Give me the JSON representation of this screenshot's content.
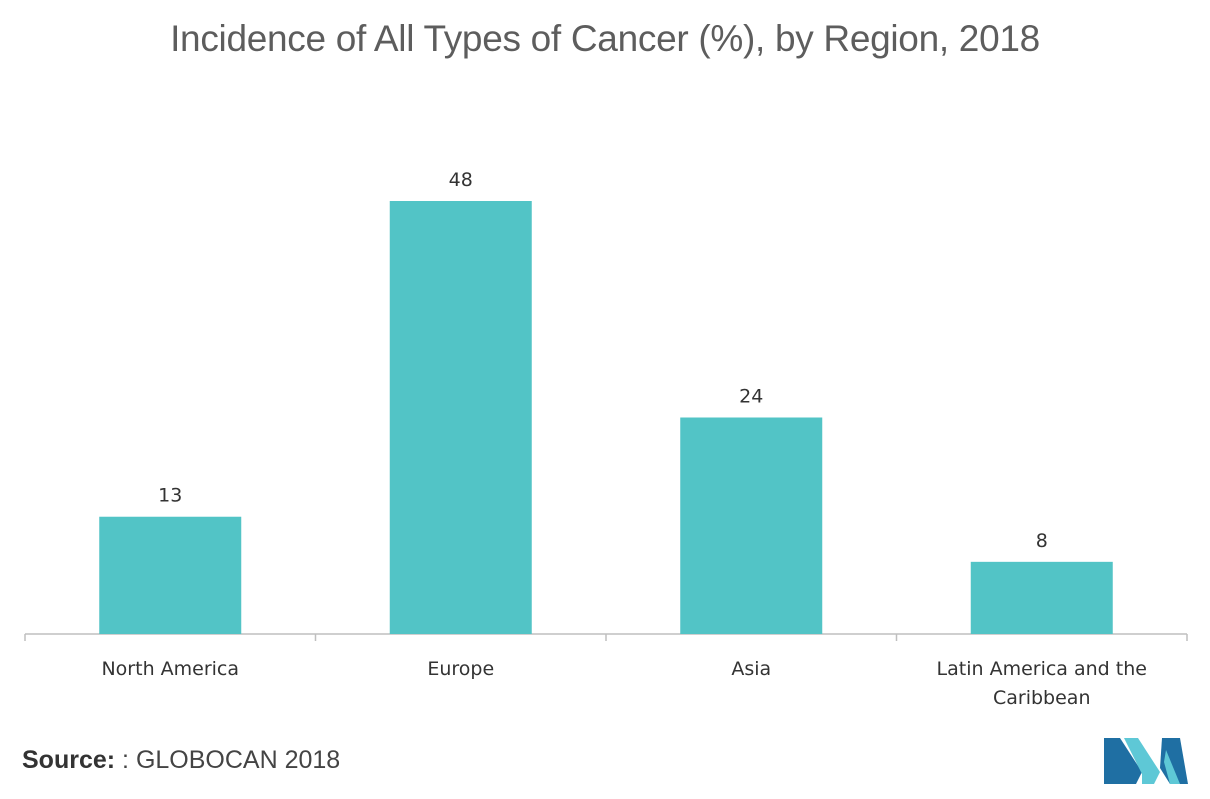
{
  "chart_data": {
    "type": "bar",
    "title": "Incidence of All Types of Cancer (%), by Region, 2018",
    "categories": [
      [
        "North America"
      ],
      [
        "Europe"
      ],
      [
        "Asia"
      ],
      [
        "Latin America and the",
        "Caribbean"
      ]
    ],
    "values": [
      13,
      48,
      24,
      8
    ],
    "data_labels": [
      "13",
      "48",
      "24",
      "8"
    ],
    "xlabel": "",
    "ylabel": "",
    "ylim": [
      0,
      48
    ],
    "grid": false,
    "legend": "none",
    "bar_color": "#52c4c6"
  },
  "source": {
    "label": "Source:",
    "text": ": GLOBOCAN 2018"
  },
  "colors": {
    "title": "#5d5d5d",
    "axis": "#bfbfbf",
    "label": "#333333",
    "logo_dark": "#1f6fa3",
    "logo_light": "#5ec8d6"
  }
}
